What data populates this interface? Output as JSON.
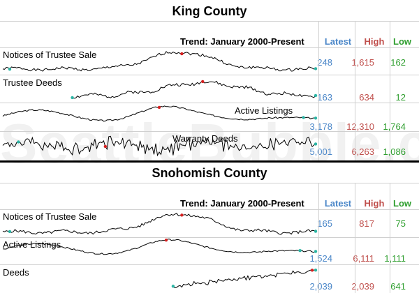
{
  "colors": {
    "latest": "#4a86c8",
    "high": "#c0504d",
    "low": "#2e9e2e",
    "line": "#000000",
    "high_dot": "#d62020",
    "low_dot": "#2bb5a5"
  },
  "watermark": "SeattleBubble.com",
  "trend_label": "Trend: January 2000-Present",
  "columns": {
    "latest": "Latest",
    "high": "High",
    "low": "Low"
  },
  "chart_data": [
    {
      "type": "table",
      "title": "King County",
      "rows": [
        {
          "label": "Notices of Trustee Sale",
          "latest": "248",
          "high": "1,615",
          "low": "162"
        },
        {
          "label": "Trustee Deeds",
          "latest": "163",
          "high": "634",
          "low": "12"
        },
        {
          "label": "Active Listings",
          "latest": "3,178",
          "high": "12,310",
          "low": "1,764"
        },
        {
          "label": "Warranty Deeds",
          "latest": "5,001",
          "high": "6,263",
          "low": "1,086"
        }
      ]
    },
    {
      "type": "table",
      "title": "Snohomish County",
      "rows": [
        {
          "label": "Notices of Trustee Sale",
          "latest": "165",
          "high": "817",
          "low": "75"
        },
        {
          "label": "Active Listings",
          "latest": "1,524",
          "high": "6,111",
          "low": "1,111"
        },
        {
          "label": "Deeds",
          "latest": "2,039",
          "high": "2,039",
          "low": "641"
        }
      ]
    }
  ]
}
